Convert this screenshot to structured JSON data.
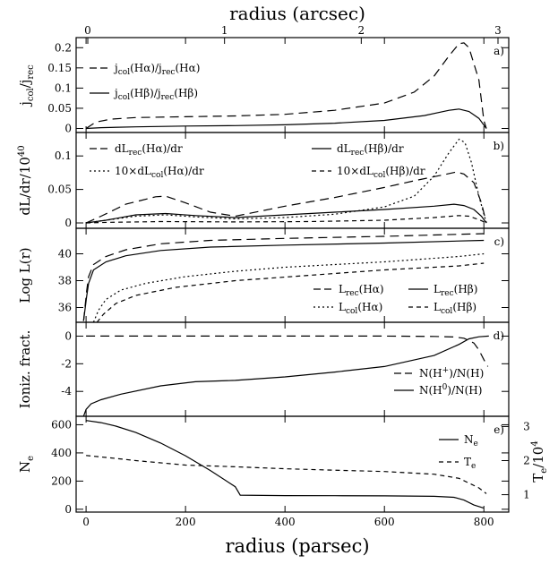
{
  "figure": {
    "top_axis": {
      "title": "radius (arcsec)",
      "ticks": [
        0,
        1,
        2,
        3
      ],
      "tick_labels": [
        "0",
        "1",
        "2",
        "3"
      ],
      "xlim": [
        0,
        3.0
      ]
    },
    "bottom_axis": {
      "title": "radius (parsec)",
      "ticks": [
        0,
        200,
        400,
        600,
        800
      ],
      "tick_labels": [
        "0",
        "200",
        "400",
        "600",
        "800"
      ],
      "xlim": [
        -20,
        850
      ]
    }
  },
  "chart_data": [
    {
      "type": "line",
      "panel_tag": "a)",
      "ylabel_main": "j",
      "ylabel_sub1": "col",
      "ylabel_mid": "/j",
      "ylabel_sub2": "rec",
      "ylim": [
        -0.01,
        0.225
      ],
      "yticks": [
        0,
        0.05,
        0.1,
        0.15,
        0.2
      ],
      "ytick_labels": [
        "0",
        "0.05",
        "0.1",
        "0.15",
        "0.2"
      ],
      "series": [
        {
          "name": "j_col(Hα)/j_rec(Hα)",
          "legend_main": "j",
          "legend_sub": "col",
          "legend_rest": "(Hα)/j",
          "legend_sub2": "rec",
          "legend_rest2": "(Hα)",
          "dash": "10,6",
          "points": [
            [
              0,
              0
            ],
            [
              20,
              0.016
            ],
            [
              50,
              0.023
            ],
            [
              100,
              0.027
            ],
            [
              200,
              0.029
            ],
            [
              300,
              0.031
            ],
            [
              400,
              0.035
            ],
            [
              500,
              0.045
            ],
            [
              600,
              0.063
            ],
            [
              660,
              0.09
            ],
            [
              700,
              0.13
            ],
            [
              730,
              0.18
            ],
            [
              750,
              0.21
            ],
            [
              760,
              0.212
            ],
            [
              770,
              0.2
            ],
            [
              790,
              0.12
            ],
            [
              800,
              0.02
            ],
            [
              805,
              0
            ]
          ]
        },
        {
          "name": "j_col(Hβ)/j_rec(Hβ)",
          "legend_main": "j",
          "legend_sub": "col",
          "legend_rest": "(Hβ)/j",
          "legend_sub2": "rec",
          "legend_rest2": "(Hβ)",
          "dash": "",
          "points": [
            [
              0,
              0
            ],
            [
              30,
              0.002
            ],
            [
              100,
              0.004
            ],
            [
              200,
              0.006
            ],
            [
              300,
              0.007
            ],
            [
              400,
              0.009
            ],
            [
              500,
              0.013
            ],
            [
              600,
              0.02
            ],
            [
              680,
              0.032
            ],
            [
              730,
              0.045
            ],
            [
              750,
              0.048
            ],
            [
              770,
              0.042
            ],
            [
              790,
              0.025
            ],
            [
              805,
              0
            ]
          ]
        }
      ]
    },
    {
      "type": "line",
      "panel_tag": "b)",
      "ylabel_main": "dL/dr/10",
      "ylabel_sup": "40",
      "ylim": [
        -0.008,
        0.135
      ],
      "yticks": [
        0,
        0.05,
        0.1
      ],
      "ytick_labels": [
        "0",
        "0.05",
        "0.1"
      ],
      "series": [
        {
          "name": "dL_rec(Hα)/dr",
          "legend_pre": "dL",
          "legend_sub": "rec",
          "legend_rest": "(Hα)/dr",
          "dash": "10,6",
          "points": [
            [
              0,
              0
            ],
            [
              30,
              0.01
            ],
            [
              80,
              0.028
            ],
            [
              140,
              0.039
            ],
            [
              160,
              0.04
            ],
            [
              200,
              0.03
            ],
            [
              250,
              0.016
            ],
            [
              300,
              0.01
            ],
            [
              400,
              0.025
            ],
            [
              500,
              0.038
            ],
            [
              600,
              0.053
            ],
            [
              660,
              0.063
            ],
            [
              720,
              0.072
            ],
            [
              745,
              0.076
            ],
            [
              760,
              0.073
            ],
            [
              780,
              0.06
            ],
            [
              795,
              0.03
            ],
            [
              805,
              0
            ]
          ]
        },
        {
          "name": "dL_rec(Hβ)/dr",
          "legend_pre": "dL",
          "legend_sub": "rec",
          "legend_rest": "(Hβ)/dr",
          "dash": "",
          "points": [
            [
              0,
              0
            ],
            [
              40,
              0.004
            ],
            [
              100,
              0.012
            ],
            [
              160,
              0.014
            ],
            [
              220,
              0.011
            ],
            [
              300,
              0.008
            ],
            [
              400,
              0.012
            ],
            [
              500,
              0.016
            ],
            [
              600,
              0.02
            ],
            [
              700,
              0.025
            ],
            [
              740,
              0.028
            ],
            [
              760,
              0.026
            ],
            [
              780,
              0.02
            ],
            [
              795,
              0.01
            ],
            [
              805,
              0
            ]
          ]
        },
        {
          "name": "10×dL_col(Hα)/dr",
          "legend_pre": "10×dL",
          "legend_sub": "col",
          "legend_rest": "(Hα)/dr",
          "dash": "2,3",
          "points": [
            [
              0,
              0
            ],
            [
              40,
              0.004
            ],
            [
              100,
              0.01
            ],
            [
              160,
              0.012
            ],
            [
              220,
              0.009
            ],
            [
              300,
              0.006
            ],
            [
              400,
              0.008
            ],
            [
              500,
              0.013
            ],
            [
              600,
              0.024
            ],
            [
              660,
              0.04
            ],
            [
              700,
              0.07
            ],
            [
              730,
              0.105
            ],
            [
              750,
              0.125
            ],
            [
              762,
              0.12
            ],
            [
              775,
              0.09
            ],
            [
              790,
              0.04
            ],
            [
              805,
              0
            ]
          ]
        },
        {
          "name": "10×dL_col(Hβ)/dr",
          "legend_pre": "10×dL",
          "legend_sub": "col",
          "legend_rest": "(Hβ)/dr",
          "dash": "5,4",
          "points": [
            [
              0,
              0
            ],
            [
              50,
              0.001
            ],
            [
              150,
              0.002
            ],
            [
              300,
              0.0015
            ],
            [
              450,
              0.002
            ],
            [
              600,
              0.004
            ],
            [
              700,
              0.008
            ],
            [
              750,
              0.011
            ],
            [
              770,
              0.01
            ],
            [
              790,
              0.005
            ],
            [
              805,
              0
            ]
          ]
        }
      ]
    },
    {
      "type": "line",
      "panel_tag": "c)",
      "ylabel_main": "Log L(r)",
      "ylim": [
        34.9,
        41.9
      ],
      "yticks": [
        36,
        38,
        40
      ],
      "ytick_labels": [
        "36",
        "38",
        "40"
      ],
      "series": [
        {
          "name": "L_rec(Hα)",
          "legend_pre": "L",
          "legend_sub": "rec",
          "legend_rest": "(Hα)",
          "dash": "10,6",
          "points": [
            [
              -5,
              35
            ],
            [
              1,
              37.2
            ],
            [
              5,
              38.3
            ],
            [
              15,
              39.2
            ],
            [
              40,
              39.8
            ],
            [
              80,
              40.3
            ],
            [
              150,
              40.75
            ],
            [
              250,
              41.0
            ],
            [
              400,
              41.15
            ],
            [
              600,
              41.3
            ],
            [
              750,
              41.45
            ],
            [
              800,
              41.5
            ]
          ]
        },
        {
          "name": "L_rec(Hβ)",
          "legend_pre": "L",
          "legend_sub": "rec",
          "legend_rest": "(Hβ)",
          "dash": "",
          "points": [
            [
              -5,
              35
            ],
            [
              1,
              36.8
            ],
            [
              5,
              37.8
            ],
            [
              15,
              38.8
            ],
            [
              40,
              39.4
            ],
            [
              80,
              39.85
            ],
            [
              150,
              40.25
            ],
            [
              250,
              40.5
            ],
            [
              400,
              40.65
            ],
            [
              600,
              40.8
            ],
            [
              750,
              40.95
            ],
            [
              800,
              41.0
            ]
          ]
        },
        {
          "name": "L_col(Hα)",
          "legend_pre": "L",
          "legend_sub": "col",
          "legend_rest": "(Hα)",
          "dash": "2,3",
          "points": [
            [
              15,
              34.9
            ],
            [
              25,
              35.8
            ],
            [
              40,
              36.6
            ],
            [
              70,
              37.3
            ],
            [
              120,
              37.8
            ],
            [
              200,
              38.3
            ],
            [
              300,
              38.7
            ],
            [
              400,
              39.0
            ],
            [
              600,
              39.4
            ],
            [
              750,
              39.8
            ],
            [
              800,
              40.0
            ]
          ]
        },
        {
          "name": "L_col(Hβ)",
          "legend_pre": "L",
          "legend_sub": "col",
          "legend_rest": "(Hβ)",
          "dash": "5,4",
          "points": [
            [
              22,
              34.9
            ],
            [
              35,
              35.5
            ],
            [
              60,
              36.3
            ],
            [
              100,
              36.9
            ],
            [
              180,
              37.5
            ],
            [
              300,
              38.0
            ],
            [
              450,
              38.4
            ],
            [
              600,
              38.8
            ],
            [
              750,
              39.1
            ],
            [
              800,
              39.3
            ]
          ]
        }
      ]
    },
    {
      "type": "line",
      "panel_tag": "d)",
      "ylabel_main": "Ioniz. fract.",
      "ylim": [
        -5.8,
        1.0
      ],
      "yticks": [
        -4,
        -2,
        0
      ],
      "ytick_labels": [
        "-4",
        "-2",
        "0"
      ],
      "series": [
        {
          "name": "N(H⁺)/N(H)",
          "legend_pre": "N(H",
          "legend_sup": "+",
          "legend_rest": ")/N(H)",
          "dash": "10,6",
          "points": [
            [
              0,
              0
            ],
            [
              200,
              0
            ],
            [
              400,
              0
            ],
            [
              600,
              0
            ],
            [
              700,
              -0.02
            ],
            [
              740,
              -0.06
            ],
            [
              760,
              -0.15
            ],
            [
              780,
              -0.5
            ],
            [
              790,
              -1.0
            ],
            [
              800,
              -1.7
            ],
            [
              808,
              -2.2
            ]
          ]
        },
        {
          "name": "N(H⁰)/N(H)",
          "legend_pre": "N(H",
          "legend_sup": "0",
          "legend_rest": ")/N(H)",
          "dash": "",
          "points": [
            [
              -5,
              -5.8
            ],
            [
              0,
              -5.3
            ],
            [
              10,
              -4.9
            ],
            [
              30,
              -4.6
            ],
            [
              70,
              -4.2
            ],
            [
              150,
              -3.6
            ],
            [
              220,
              -3.3
            ],
            [
              300,
              -3.2
            ],
            [
              400,
              -2.95
            ],
            [
              500,
              -2.6
            ],
            [
              600,
              -2.2
            ],
            [
              700,
              -1.4
            ],
            [
              750,
              -0.6
            ],
            [
              770,
              -0.2
            ],
            [
              790,
              -0.05
            ],
            [
              810,
              0
            ]
          ]
        }
      ]
    },
    {
      "type": "line",
      "panel_tag": "e)",
      "ylabel_main": "N",
      "ylabel_sub": "e",
      "ylabel_right": "T",
      "ylabel_right_sub": "e",
      "ylabel_right_rest": "/10",
      "ylabel_right_sup": "4",
      "ylim": [
        -20,
        660
      ],
      "yticks": [
        0,
        200,
        400,
        600
      ],
      "ytick_labels": [
        "0",
        "200",
        "400",
        "600"
      ],
      "y2lim": [
        0.49,
        3.3
      ],
      "y2ticks": [
        1,
        2,
        3
      ],
      "y2tick_labels": [
        "1",
        "2",
        "3"
      ],
      "series": [
        {
          "name": "N_e",
          "legend_pre": "N",
          "legend_sub": "e",
          "legend_rest": "",
          "dash": "",
          "axis": "left",
          "points": [
            [
              0,
              630
            ],
            [
              30,
              615
            ],
            [
              60,
              590
            ],
            [
              100,
              545
            ],
            [
              150,
              470
            ],
            [
              200,
              380
            ],
            [
              250,
              275
            ],
            [
              300,
              160
            ],
            [
              310,
              100
            ],
            [
              400,
              97
            ],
            [
              500,
              96
            ],
            [
              600,
              95
            ],
            [
              700,
              92
            ],
            [
              740,
              85
            ],
            [
              760,
              65
            ],
            [
              780,
              30
            ],
            [
              800,
              8
            ]
          ]
        },
        {
          "name": "T_e",
          "legend_pre": "T",
          "legend_sub": "e",
          "legend_rest": "",
          "dash": "5,4",
          "axis": "right",
          "points": [
            [
              0,
              2.15
            ],
            [
              50,
              2.08
            ],
            [
              100,
              2.0
            ],
            [
              200,
              1.87
            ],
            [
              300,
              1.82
            ],
            [
              400,
              1.76
            ],
            [
              500,
              1.72
            ],
            [
              600,
              1.68
            ],
            [
              700,
              1.6
            ],
            [
              750,
              1.48
            ],
            [
              790,
              1.2
            ],
            [
              805,
              1.03
            ]
          ]
        }
      ]
    }
  ]
}
